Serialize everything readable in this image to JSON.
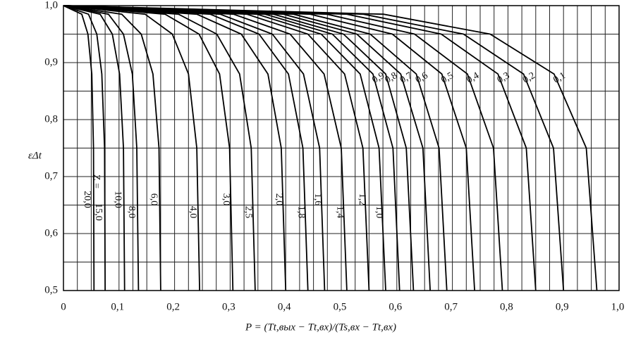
{
  "chart_data": {
    "type": "line",
    "x_label": "P = (Tt,вых − Tt,вх)/(Ts,вх − Tt,вх)",
    "y_label": "εΔt",
    "z_label": "Z =",
    "xlim": [
      0,
      1.0
    ],
    "ylim": [
      0.5,
      1.0
    ],
    "xticks": [
      0,
      {
        "value": 0.1,
        "label": "0,1"
      },
      {
        "value": 0.2,
        "label": "0,2"
      },
      {
        "value": 0.3,
        "label": "0,3"
      },
      {
        "value": 0.4,
        "label": "0,4"
      },
      {
        "value": 0.5,
        "label": "0,5"
      },
      {
        "value": 0.6,
        "label": "0,6"
      },
      {
        "value": 0.7,
        "label": "0,7"
      },
      {
        "value": 0.8,
        "label": "0,8"
      },
      {
        "value": 0.9,
        "label": "0,9"
      },
      {
        "value": 1.0,
        "label": "1,0"
      }
    ],
    "yticks": [
      {
        "value": 0.5,
        "label": "0,5"
      },
      {
        "value": 0.6,
        "label": "0,6"
      },
      {
        "value": 0.7,
        "label": "0,7"
      },
      {
        "value": 0.8,
        "label": "0,8"
      },
      {
        "value": 0.9,
        "label": "0,9"
      },
      {
        "value": 1.0,
        "label": "1,0"
      }
    ],
    "xgrid": [
      0,
      0.025,
      0.05,
      0.075,
      0.1,
      0.125,
      0.15,
      0.175,
      0.2,
      0.225,
      0.25,
      0.275,
      0.3,
      0.325,
      0.35,
      0.375,
      0.4,
      0.425,
      0.45,
      0.475,
      0.5,
      0.525,
      0.55,
      0.575,
      0.6,
      0.625,
      0.65,
      0.675,
      0.7,
      0.725,
      0.75,
      0.775,
      0.8,
      0.825,
      0.85,
      0.875,
      0.9,
      0.925,
      0.95,
      0.975,
      1.0
    ],
    "ygrid": [
      0.5,
      0.55,
      0.6,
      0.65,
      0.7,
      0.75,
      0.8,
      0.85,
      0.9,
      0.95,
      1.0
    ],
    "grid": true,
    "series": [
      {
        "name": "0,1",
        "color": "#000",
        "x": [
          0,
          0.576,
          0.768,
          0.883,
          0.941,
          0.96
        ],
        "values": [
          1.0,
          0.985,
          0.95,
          0.88,
          0.75,
          0.5
        ]
      },
      {
        "name": "0,2",
        "color": "#000",
        "x": [
          0,
          0.54,
          0.72,
          0.828,
          0.882,
          0.9
        ],
        "values": [
          1.0,
          0.985,
          0.95,
          0.88,
          0.75,
          0.5
        ]
      },
      {
        "name": "0,3",
        "color": "#000",
        "x": [
          0,
          0.51,
          0.68,
          0.782,
          0.833,
          0.85
        ],
        "values": [
          1.0,
          0.985,
          0.95,
          0.88,
          0.75,
          0.5
        ]
      },
      {
        "name": "0,4",
        "color": "#000",
        "x": [
          0,
          0.474,
          0.632,
          0.727,
          0.774,
          0.79
        ],
        "values": [
          1.0,
          0.985,
          0.95,
          0.88,
          0.75,
          0.5
        ]
      },
      {
        "name": "0,5",
        "color": "#000",
        "x": [
          0,
          0.444,
          0.592,
          0.681,
          0.725,
          0.74
        ],
        "values": [
          1.0,
          0.985,
          0.95,
          0.88,
          0.75,
          0.5
        ]
      },
      {
        "name": "0,6",
        "color": "#000",
        "x": [
          0,
          0.414,
          0.552,
          0.635,
          0.676,
          0.69
        ],
        "values": [
          1.0,
          0.985,
          0.95,
          0.88,
          0.75,
          0.5
        ]
      },
      {
        "name": "0,7",
        "color": "#000",
        "x": [
          0,
          0.396,
          0.528,
          0.607,
          0.647,
          0.66
        ],
        "values": [
          1.0,
          0.985,
          0.95,
          0.88,
          0.75,
          0.5
        ]
      },
      {
        "name": "0,8",
        "color": "#000",
        "x": [
          0,
          0.378,
          0.504,
          0.58,
          0.617,
          0.63
        ],
        "values": [
          1.0,
          0.985,
          0.95,
          0.88,
          0.75,
          0.5
        ]
      },
      {
        "name": "0,9",
        "color": "#000",
        "x": [
          0,
          0.363,
          0.484,
          0.557,
          0.593,
          0.605
        ],
        "values": [
          1.0,
          0.985,
          0.95,
          0.88,
          0.75,
          0.5
        ]
      },
      {
        "name": "1,0",
        "color": "#000",
        "x": [
          0,
          0.348,
          0.464,
          0.534,
          0.568,
          0.58
        ],
        "values": [
          1.0,
          0.985,
          0.95,
          0.88,
          0.75,
          0.5
        ]
      },
      {
        "name": "1,2",
        "color": "#000",
        "x": [
          0,
          0.33,
          0.44,
          0.506,
          0.539,
          0.55
        ],
        "values": [
          1.0,
          0.985,
          0.95,
          0.88,
          0.75,
          0.5
        ]
      },
      {
        "name": "1,4",
        "color": "#000",
        "x": [
          0,
          0.306,
          0.408,
          0.469,
          0.5,
          0.51
        ],
        "values": [
          1.0,
          0.985,
          0.95,
          0.88,
          0.75,
          0.5
        ]
      },
      {
        "name": "1,6",
        "color": "#000",
        "x": [
          0,
          0.282,
          0.376,
          0.432,
          0.461,
          0.47
        ],
        "values": [
          1.0,
          0.985,
          0.95,
          0.88,
          0.75,
          0.5
        ]
      },
      {
        "name": "1,8",
        "color": "#000",
        "x": [
          0,
          0.264,
          0.352,
          0.405,
          0.431,
          0.44
        ],
        "values": [
          1.0,
          0.985,
          0.95,
          0.88,
          0.75,
          0.5
        ]
      },
      {
        "name": "2,0",
        "color": "#000",
        "x": [
          0,
          0.24,
          0.32,
          0.368,
          0.392,
          0.4
        ],
        "values": [
          1.0,
          0.985,
          0.95,
          0.88,
          0.75,
          0.5
        ]
      },
      {
        "name": "2,5",
        "color": "#000",
        "x": [
          0,
          0.207,
          0.276,
          0.317,
          0.338,
          0.345
        ],
        "values": [
          1.0,
          0.985,
          0.95,
          0.88,
          0.75,
          0.5
        ]
      },
      {
        "name": "3,0",
        "color": "#000",
        "x": [
          0,
          0.183,
          0.244,
          0.281,
          0.299,
          0.305
        ],
        "values": [
          1.0,
          0.985,
          0.95,
          0.88,
          0.75,
          0.5
        ]
      },
      {
        "name": "4,0",
        "color": "#000",
        "x": [
          0,
          0.147,
          0.196,
          0.225,
          0.24,
          0.245
        ],
        "values": [
          1.0,
          0.985,
          0.95,
          0.88,
          0.75,
          0.5
        ]
      },
      {
        "name": "6,0",
        "color": "#000",
        "x": [
          0,
          0.105,
          0.14,
          0.161,
          0.172,
          0.175
        ],
        "values": [
          1.0,
          0.985,
          0.95,
          0.88,
          0.75,
          0.5
        ]
      },
      {
        "name": "8,0",
        "color": "#000",
        "x": [
          0,
          0.081,
          0.108,
          0.124,
          0.132,
          0.135
        ],
        "values": [
          1.0,
          0.985,
          0.95,
          0.88,
          0.75,
          0.5
        ]
      },
      {
        "name": "10,0",
        "color": "#000",
        "x": [
          0,
          0.066,
          0.088,
          0.101,
          0.108,
          0.11
        ],
        "values": [
          1.0,
          0.985,
          0.95,
          0.88,
          0.75,
          0.5
        ]
      },
      {
        "name": "15,0",
        "color": "#000",
        "x": [
          0,
          0.045,
          0.06,
          0.069,
          0.074,
          0.075
        ],
        "values": [
          1.0,
          0.985,
          0.95,
          0.88,
          0.75,
          0.5
        ]
      },
      {
        "name": "20,0",
        "color": "#000",
        "x": [
          0,
          0.033,
          0.044,
          0.051,
          0.054,
          0.055
        ],
        "values": [
          1.0,
          0.985,
          0.95,
          0.88,
          0.75,
          0.5
        ]
      }
    ]
  }
}
